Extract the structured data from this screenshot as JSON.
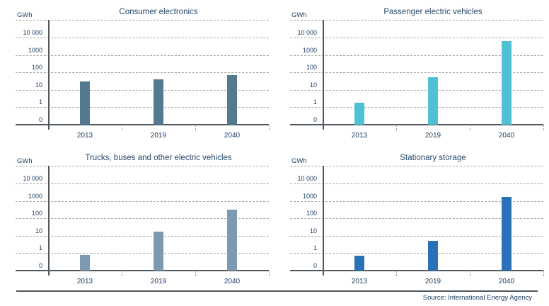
{
  "figure": {
    "unit": "GWh",
    "source": "Source: International Energy Agency",
    "background": "#ffffff",
    "text_color": "#1e3f63",
    "grid_color": "#a8a8a8",
    "axis_color": "#4e565e"
  },
  "axis": {
    "y_unit": "GWh",
    "y_tick_labels_top_to_bottom": [
      "10 000",
      "1000",
      "100",
      "10",
      "1",
      "0"
    ],
    "y_scale": "log decades, one equal band per decade, 0-1 band at bottom, unlabeled top gridline = 100 000",
    "x_categories": [
      "2013",
      "2019",
      "2040"
    ],
    "grid": "horizontal dashed"
  },
  "chart_data": [
    {
      "type": "bar",
      "title": "Consumer electronics",
      "ylabel": "GWh",
      "categories": [
        "2013",
        "2019",
        "2040"
      ],
      "values": [
        30,
        40,
        70
      ],
      "bar_color": "#537a91",
      "yscale": "log",
      "ylim": [
        0,
        100000
      ]
    },
    {
      "type": "bar",
      "title": "Passenger electric vehicles",
      "ylabel": "GWh",
      "categories": [
        "2013",
        "2019",
        "2040"
      ],
      "values": [
        1.8,
        55,
        6500
      ],
      "bar_color": "#50c0d4",
      "yscale": "log",
      "ylim": [
        0,
        100000
      ]
    },
    {
      "type": "bar",
      "title": "Trucks, buses and other electric vehicles",
      "ylabel": "GWh",
      "categories": [
        "2013",
        "2019",
        "2040"
      ],
      "values": [
        0.9,
        18,
        300
      ],
      "bar_color": "#7e9ab0",
      "yscale": "log",
      "ylim": [
        0,
        100000
      ]
    },
    {
      "type": "bar",
      "title": "Stationary storage",
      "ylabel": "GWh",
      "categories": [
        "2013",
        "2019",
        "2040"
      ],
      "values": [
        0.85,
        5,
        1700
      ],
      "bar_color": "#2a71b8",
      "yscale": "log",
      "ylim": [
        0,
        100000
      ]
    }
  ]
}
